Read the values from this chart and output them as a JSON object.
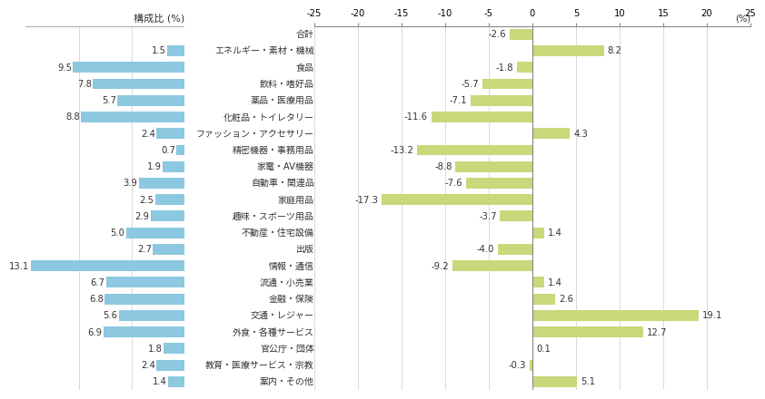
{
  "categories": [
    "合計",
    "エネルギー・素材・機械",
    "食品",
    "飲料・嗜好品",
    "薬品・医療用品",
    "化粧品・トイレタリー",
    "ファッション・アクセサリー",
    "精密機器・事務用品",
    "家電・AV機器",
    "自動車・関連品",
    "家庭用品",
    "趣味・スポーツ用品",
    "不動産・住宅設備",
    "出版",
    "情報・通信",
    "流通・小売業",
    "金融・保険",
    "交通・レジャー",
    "外食・各種サービス",
    "官公庁・団体",
    "教育・医療サービス・宗教",
    "案内・その他"
  ],
  "growth_values": [
    -2.6,
    8.2,
    -1.8,
    -5.7,
    -7.1,
    -11.6,
    4.3,
    -13.2,
    -8.8,
    -7.6,
    -17.3,
    -3.7,
    1.4,
    -4.0,
    -9.2,
    1.4,
    2.6,
    19.1,
    12.7,
    0.1,
    -0.3,
    5.1
  ],
  "composition_values": [
    null,
    1.5,
    9.5,
    7.8,
    5.7,
    8.8,
    2.4,
    0.7,
    1.9,
    3.9,
    2.5,
    2.9,
    5.0,
    2.7,
    13.1,
    6.7,
    6.8,
    5.6,
    6.9,
    1.8,
    2.4,
    1.4
  ],
  "composition_color": "#8cc8e0",
  "bar_color": "#c8d87a",
  "xlim_growth_min": -25,
  "xlim_growth_max": 25,
  "title_left": "構成比 (%)",
  "xticks_growth": [
    -25,
    -20,
    -15,
    -10,
    -5,
    0,
    5,
    10,
    15,
    20,
    25
  ],
  "background_color": "#ffffff",
  "grid_color": "#cccccc",
  "text_color": "#333333",
  "fontsize": 7.2,
  "label_fontsize": 7.2,
  "title_fontsize": 8.0
}
